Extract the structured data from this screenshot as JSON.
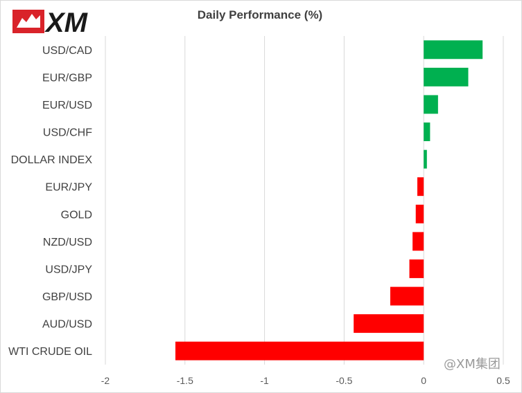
{
  "logo": {
    "text": "XM",
    "icon": "xm-brand-logo"
  },
  "watermark": "@XM集团",
  "chart_data": {
    "type": "bar",
    "orientation": "horizontal",
    "title": "Daily Performance (%)",
    "xlabel": "",
    "ylabel": "",
    "categories": [
      "USD/CAD",
      "EUR/GBP",
      "EUR/USD",
      "USD/CHF",
      "DOLLAR INDEX",
      "EUR/JPY",
      "GOLD",
      "NZD/USD",
      "USD/JPY",
      "GBP/USD",
      "AUD/USD",
      "WTI CRUDE OIL"
    ],
    "values": [
      0.37,
      0.28,
      0.09,
      0.04,
      0.02,
      -0.04,
      -0.05,
      -0.07,
      -0.09,
      -0.21,
      -0.44,
      -1.56
    ],
    "xlim": [
      -2,
      0.5
    ],
    "xticks": [
      -2,
      -1.5,
      -1,
      -0.5,
      0,
      0.5
    ],
    "xtick_labels": [
      "-2",
      "-1.5",
      "-1",
      "-0.5",
      "0",
      "0.5"
    ],
    "grid": "vertical",
    "legend": "none",
    "colors": {
      "positive": "#00b050",
      "negative": "#ff0000",
      "grid": "#d9d9d9",
      "text": "#404040"
    }
  }
}
